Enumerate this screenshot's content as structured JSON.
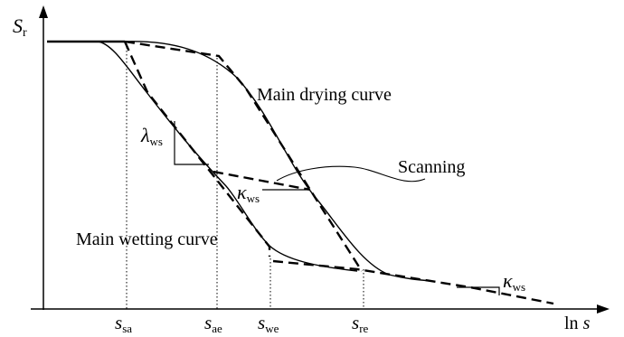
{
  "axes": {
    "y_symbol": "S",
    "y_subscript": "r",
    "x_prefix": "ln ",
    "x_symbol": "s"
  },
  "curve_labels": {
    "main_drying": "Main drying curve",
    "main_wetting": "Main wetting curve",
    "scanning": "Scanning"
  },
  "slope_labels": {
    "lambda_symbol": "λ",
    "lambda_subscript": "ws",
    "kappa_symbol": "κ",
    "kappa_subscript": "ws"
  },
  "suction_ticks": [
    {
      "symbol": "s",
      "subscript": "sa"
    },
    {
      "symbol": "s",
      "subscript": "ae"
    },
    {
      "symbol": "s",
      "subscript": "we"
    },
    {
      "symbol": "s",
      "subscript": "re"
    }
  ]
}
